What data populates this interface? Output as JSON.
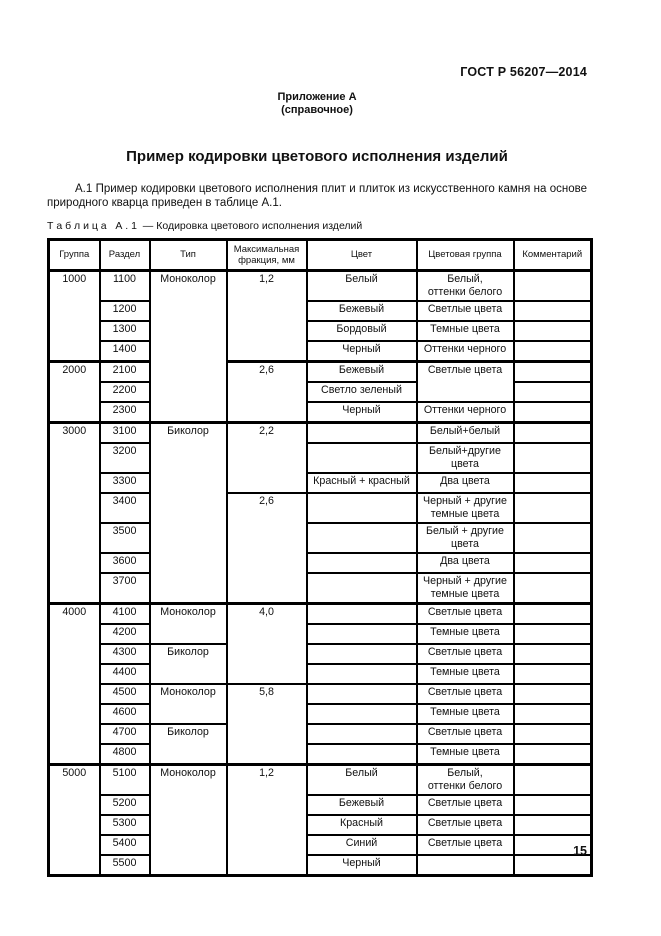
{
  "page": {
    "doc_ref": "ГОСТ Р 56207—2014",
    "annex_title": "Приложение А",
    "annex_subtitle": "(справочное)",
    "title": "Пример кодировки цветового исполнения изделий",
    "paragraph": "А.1 Пример кодировки цветового исполнения плит и плиток из искусственного камня на основе природного кварца приведен в таблице А.1.",
    "table_caption": "Т а б л и ц а   А . 1  — Кодировка цветового исполнения изделий",
    "page_number": "15"
  },
  "table": {
    "headers": [
      "Группа",
      "Раздел",
      "Тип",
      "Максимальная\nфракция, мм",
      "Цвет",
      "Цветовая группа",
      "Комментарий"
    ],
    "rows": [
      {
        "group": true,
        "cells": [
          {
            "t": "1000",
            "rs": 4
          },
          {
            "t": "1100"
          },
          {
            "t": "Моноколор",
            "rs": 7
          },
          {
            "t": "1,2",
            "rs": 4
          },
          {
            "t": "Белый"
          },
          {
            "t": "Белый,\nоттенки белого"
          },
          {
            "t": ""
          }
        ]
      },
      {
        "cells": [
          {
            "t": "1200"
          },
          {
            "t": "Бежевый"
          },
          {
            "t": "Светлые цвета"
          },
          {
            "t": ""
          }
        ]
      },
      {
        "cells": [
          {
            "t": "1300"
          },
          {
            "t": "Бордовый"
          },
          {
            "t": "Темные цвета"
          },
          {
            "t": ""
          }
        ]
      },
      {
        "cells": [
          {
            "t": "1400"
          },
          {
            "t": "Черный"
          },
          {
            "t": "Оттенки черного"
          },
          {
            "t": ""
          }
        ]
      },
      {
        "group": true,
        "cells": [
          {
            "t": "2000",
            "rs": 3
          },
          {
            "t": "2100"
          },
          {
            "t": "2,6",
            "rs": 3
          },
          {
            "t": "Бежевый"
          },
          {
            "t": "Светлые цвета",
            "rs": 2
          },
          {
            "t": ""
          }
        ]
      },
      {
        "cells": [
          {
            "t": "2200"
          },
          {
            "t": "Светло зеленый"
          },
          {
            "t": ""
          }
        ]
      },
      {
        "cells": [
          {
            "t": "2300"
          },
          {
            "t": "Черный"
          },
          {
            "t": "Оттенки черного"
          },
          {
            "t": ""
          }
        ]
      },
      {
        "group": true,
        "cells": [
          {
            "t": "3000",
            "rs": 7
          },
          {
            "t": "3100"
          },
          {
            "t": "Биколор",
            "rs": 7
          },
          {
            "t": "2,2",
            "rs": 3
          },
          {
            "t": ""
          },
          {
            "t": "Белый+белый"
          },
          {
            "t": ""
          }
        ]
      },
      {
        "cells": [
          {
            "t": "3200"
          },
          {
            "t": ""
          },
          {
            "t": "Белый+другие\nцвета"
          },
          {
            "t": ""
          }
        ]
      },
      {
        "cells": [
          {
            "t": "3300"
          },
          {
            "t": "Красный + красный"
          },
          {
            "t": "Два цвета"
          },
          {
            "t": ""
          }
        ]
      },
      {
        "cells": [
          {
            "t": "3400"
          },
          {
            "t": "2,6",
            "rs": 4
          },
          {
            "t": ""
          },
          {
            "t": "Черный + другие\nтемные цвета"
          },
          {
            "t": ""
          }
        ]
      },
      {
        "cells": [
          {
            "t": "3500"
          },
          {
            "t": ""
          },
          {
            "t": "Белый + другие\nцвета"
          },
          {
            "t": ""
          }
        ]
      },
      {
        "cells": [
          {
            "t": "3600"
          },
          {
            "t": ""
          },
          {
            "t": "Два цвета"
          },
          {
            "t": ""
          }
        ]
      },
      {
        "cells": [
          {
            "t": "3700"
          },
          {
            "t": ""
          },
          {
            "t": "Черный + другие\nтемные цвета"
          },
          {
            "t": ""
          }
        ]
      },
      {
        "group": true,
        "cells": [
          {
            "t": "4000",
            "rs": 8
          },
          {
            "t": "4100"
          },
          {
            "t": "Моноколор",
            "rs": 2
          },
          {
            "t": "4,0",
            "rs": 4
          },
          {
            "t": ""
          },
          {
            "t": "Светлые цвета"
          },
          {
            "t": ""
          }
        ]
      },
      {
        "cells": [
          {
            "t": "4200"
          },
          {
            "t": ""
          },
          {
            "t": "Темные цвета"
          },
          {
            "t": ""
          }
        ]
      },
      {
        "cells": [
          {
            "t": "4300"
          },
          {
            "t": "Биколор",
            "rs": 2
          },
          {
            "t": ""
          },
          {
            "t": "Светлые цвета"
          },
          {
            "t": ""
          }
        ]
      },
      {
        "cells": [
          {
            "t": "4400"
          },
          {
            "t": ""
          },
          {
            "t": "Темные цвета"
          },
          {
            "t": ""
          }
        ]
      },
      {
        "cells": [
          {
            "t": "4500"
          },
          {
            "t": "Моноколор",
            "rs": 2
          },
          {
            "t": "5,8",
            "rs": 4
          },
          {
            "t": ""
          },
          {
            "t": "Светлые цвета"
          },
          {
            "t": ""
          }
        ]
      },
      {
        "cells": [
          {
            "t": "4600"
          },
          {
            "t": ""
          },
          {
            "t": "Темные цвета"
          },
          {
            "t": ""
          }
        ]
      },
      {
        "cells": [
          {
            "t": "4700"
          },
          {
            "t": "Биколор",
            "rs": 2
          },
          {
            "t": ""
          },
          {
            "t": "Светлые цвета"
          },
          {
            "t": ""
          }
        ]
      },
      {
        "cells": [
          {
            "t": "4800"
          },
          {
            "t": ""
          },
          {
            "t": "Темные цвета"
          },
          {
            "t": ""
          }
        ]
      },
      {
        "group": true,
        "cells": [
          {
            "t": "5000",
            "rs": 5
          },
          {
            "t": "5100"
          },
          {
            "t": "Моноколор",
            "rs": 5
          },
          {
            "t": "1,2",
            "rs": 5
          },
          {
            "t": "Белый"
          },
          {
            "t": "Белый,\nоттенки белого"
          },
          {
            "t": ""
          }
        ]
      },
      {
        "cells": [
          {
            "t": "5200"
          },
          {
            "t": "Бежевый"
          },
          {
            "t": "Светлые цвета"
          },
          {
            "t": ""
          }
        ]
      },
      {
        "cells": [
          {
            "t": "5300"
          },
          {
            "t": "Красный"
          },
          {
            "t": "Светлые цвета"
          },
          {
            "t": ""
          }
        ]
      },
      {
        "cells": [
          {
            "t": "5400"
          },
          {
            "t": "Синий"
          },
          {
            "t": "Светлые цвета"
          },
          {
            "t": ""
          }
        ]
      },
      {
        "cells": [
          {
            "t": "5500"
          },
          {
            "t": "Черный"
          },
          {
            "t": ""
          },
          {
            "t": ""
          }
        ]
      }
    ]
  }
}
